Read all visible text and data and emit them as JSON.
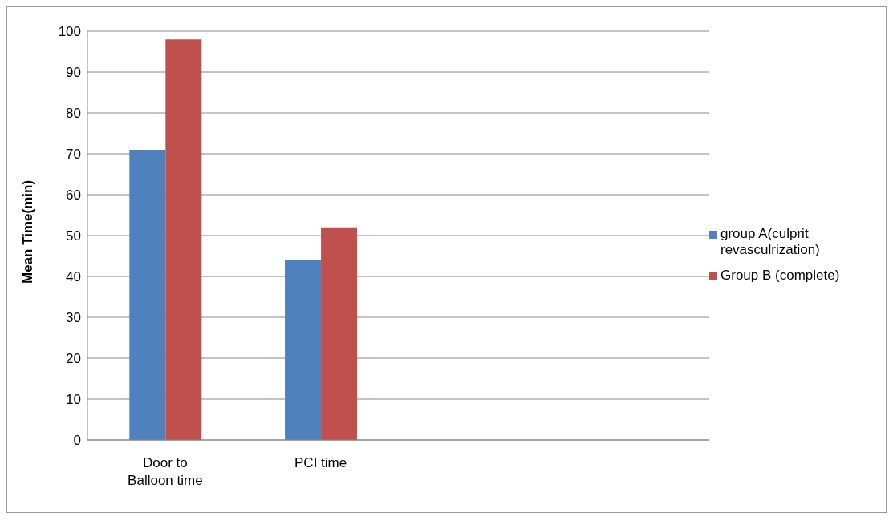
{
  "chart_data": {
    "type": "bar",
    "ylabel": "Mean Time(min)",
    "categories": [
      "Door to Balloon time",
      "PCI time",
      null,
      null
    ],
    "series": [
      {
        "name": "group A(culprit revasculrization)",
        "color": "#4f81bd",
        "values": [
          71,
          44,
          null,
          null
        ]
      },
      {
        "name": "Group B (complete)",
        "color": "#c0504d",
        "values": [
          98,
          52,
          null,
          null
        ]
      }
    ],
    "ylim": [
      0,
      100
    ],
    "yticks": [
      0,
      10,
      20,
      30,
      40,
      50,
      60,
      70,
      80,
      90,
      100
    ],
    "grid": "y",
    "legend": "right"
  }
}
